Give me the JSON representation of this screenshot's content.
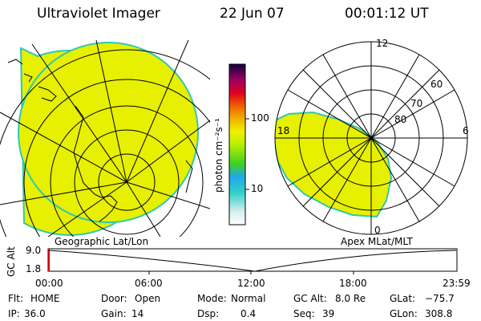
{
  "header": {
    "title": "Ultraviolet Imager",
    "date": "22 Jun 07",
    "time": "00:01:12 UT"
  },
  "colors": {
    "fill": "#e6f000",
    "edge": "#30c8b0",
    "line": "#000000"
  },
  "colorbar": {
    "unit_label": "photon cm⁻²s⁻¹",
    "ticks": [
      "100",
      "10"
    ],
    "scale": "log"
  },
  "geo_panel": {
    "label": "Geographic Lat/Lon"
  },
  "polar_panel": {
    "label": "Apex MLat/MLT",
    "mlt_labels": {
      "top": "12",
      "left": "18",
      "right": "6",
      "bottom": "0"
    },
    "lat_labels": [
      "60",
      "70",
      "80"
    ]
  },
  "altitude_plot": {
    "ylabel": "GC Alt",
    "y_ticks": [
      "9.0",
      "1.8"
    ],
    "x_ticks": [
      "00:00",
      "06:00",
      "12:00",
      "18:00",
      "23:59"
    ]
  },
  "footer": {
    "row1": {
      "flt_label": "Flt:",
      "flt_value": "HOME",
      "door_label": "Door:",
      "door_value": "Open",
      "mode_label": "Mode:",
      "mode_value": "Normal",
      "gcalt_label": "GC Alt:",
      "gcalt_value": "8.0 Re",
      "glat_label": "GLat:",
      "glat_value": "−75.7"
    },
    "row2": {
      "ip_label": "IP:",
      "ip_value": "36.0",
      "gain_label": "Gain:",
      "gain_value": "14",
      "dsp_label": "Dsp:",
      "dsp_value": "0.4",
      "seq_label": "Seq:",
      "seq_value": "39",
      "glon_label": "GLon:",
      "glon_value": "308.8"
    }
  }
}
